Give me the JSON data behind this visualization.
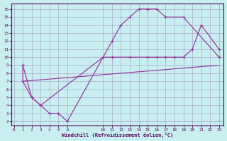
{
  "xlabel": "Windchill (Refroidissement éolien,°C)",
  "bg_color": "#c8eef0",
  "grid_color": "#a8a8c8",
  "line_color": "#993399",
  "curve1_x": [
    1,
    1,
    2,
    3,
    4,
    5,
    6,
    10,
    11,
    12,
    13,
    14,
    15,
    15,
    16,
    17,
    19,
    23
  ],
  "curve1_y": [
    9,
    7,
    5,
    4,
    3,
    3,
    2,
    10,
    12,
    14,
    15,
    16,
    16,
    16,
    16,
    15,
    15,
    10
  ],
  "curve2_x": [
    1,
    2,
    3,
    10,
    11,
    13,
    15,
    16,
    17,
    18,
    19,
    20,
    21,
    23
  ],
  "curve2_y": [
    9,
    5,
    4,
    10,
    10,
    10,
    10,
    10,
    10,
    10,
    10,
    11,
    14,
    11
  ],
  "curve3_x": [
    1,
    23
  ],
  "curve3_y": [
    7,
    9
  ],
  "xticks_left": [
    0,
    1,
    2,
    3,
    4,
    5,
    6
  ],
  "xticks_right": [
    10,
    11,
    12,
    13,
    14,
    15,
    16,
    17,
    18,
    19,
    20,
    21,
    22,
    23
  ],
  "yticks": [
    2,
    3,
    4,
    5,
    6,
    7,
    8,
    9,
    10,
    11,
    12,
    13,
    14,
    15,
    16
  ],
  "xlim": [
    -0.3,
    23.5
  ],
  "ylim": [
    1.5,
    16.7
  ]
}
